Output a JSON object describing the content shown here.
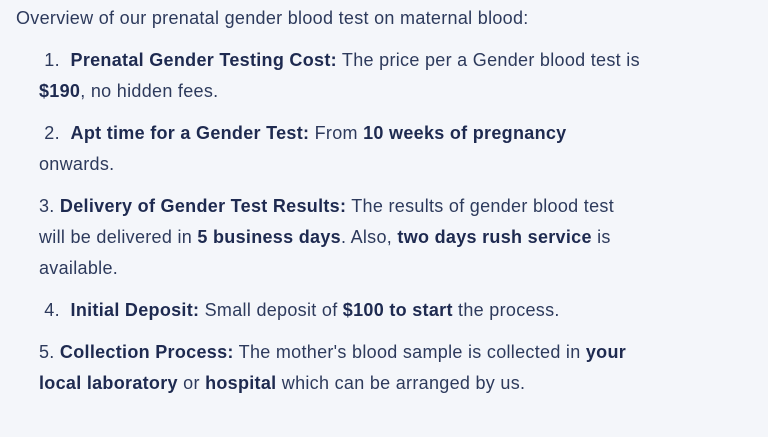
{
  "colors": {
    "background": "#f4f6fa",
    "text": "#2d3a5c",
    "bold_text": "#1e2a50"
  },
  "content": {
    "intro": "Overview of our prenatal gender blood test on maternal blood:",
    "items": [
      {
        "number": "1.",
        "lines": [
          [
            {
              "t": " 1.  ",
              "b": false
            },
            {
              "t": "Prenatal Gender Testing Cost:",
              "b": true
            },
            {
              "t": " The price per a Gender blood test is",
              "b": false
            }
          ],
          [
            {
              "t": "$190",
              "b": true
            },
            {
              "t": ", no hidden fees.",
              "b": false
            }
          ]
        ]
      },
      {
        "number": "2.",
        "lines": [
          [
            {
              "t": " 2.  ",
              "b": false
            },
            {
              "t": "Apt time for a Gender Test:",
              "b": true
            },
            {
              "t": " From ",
              "b": false
            },
            {
              "t": "10 weeks of pregnancy",
              "b": true
            }
          ],
          [
            {
              "t": "onwards.",
              "b": false
            }
          ]
        ]
      },
      {
        "number": "3.",
        "lines": [
          [
            {
              "t": "3. ",
              "b": false
            },
            {
              "t": "Delivery of Gender Test Results:",
              "b": true
            },
            {
              "t": " The results of gender blood test",
              "b": false
            }
          ],
          [
            {
              "t": "will be delivered in ",
              "b": false
            },
            {
              "t": "5 business days",
              "b": true
            },
            {
              "t": ". Also, ",
              "b": false
            },
            {
              "t": "two days rush service",
              "b": true
            },
            {
              "t": " is",
              "b": false
            }
          ],
          [
            {
              "t": "available.",
              "b": false
            }
          ]
        ]
      },
      {
        "number": "4.",
        "lines": [
          [
            {
              "t": " 4.  ",
              "b": false
            },
            {
              "t": "Initial Deposit:",
              "b": true
            },
            {
              "t": " Small deposit of ",
              "b": false
            },
            {
              "t": "$100 to start",
              "b": true
            },
            {
              "t": " the process.",
              "b": false
            }
          ]
        ]
      },
      {
        "number": "5.",
        "lines": [
          [
            {
              "t": "5. ",
              "b": false
            },
            {
              "t": "Collection Process:",
              "b": true
            },
            {
              "t": " The mother's blood sample is collected in ",
              "b": false
            },
            {
              "t": "your",
              "b": true
            }
          ],
          [
            {
              "t": "local laboratory",
              "b": true
            },
            {
              "t": " or ",
              "b": false
            },
            {
              "t": "hospital",
              "b": true
            },
            {
              "t": " which can be arranged by us.",
              "b": false
            }
          ]
        ]
      }
    ]
  }
}
